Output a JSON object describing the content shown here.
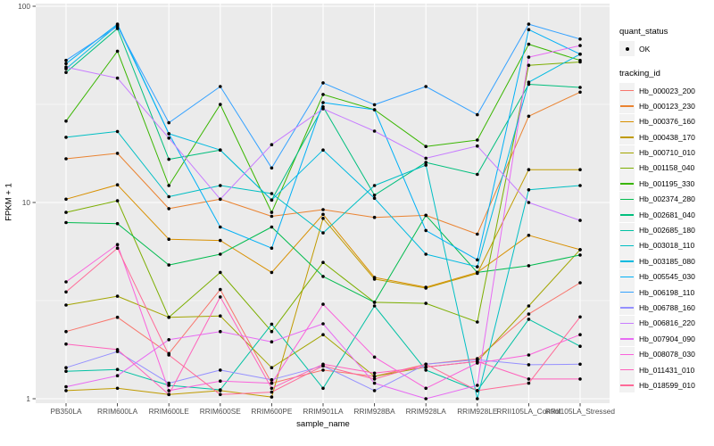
{
  "figure": {
    "x_axis_title": "sample_name",
    "y_axis_title": "FPKM + 1",
    "legend": {
      "quant_title": "quant_status",
      "quant_item": "OK",
      "tracking_title": "tracking_id"
    }
  },
  "colors": {
    "panel_bg": "#EBEBEB",
    "grid": "#FFFFFF",
    "axis_text": "#4D4D4D",
    "tick": "#333333",
    "point": "#000000",
    "legend_key_bg": "#F2F2F2"
  },
  "chart_data": {
    "type": "line",
    "title": "",
    "xlabel": "sample_name",
    "ylabel": "FPKM + 1",
    "y_scale": "log10",
    "ylim": [
      1,
      100
    ],
    "y_ticks": [
      1,
      10,
      100
    ],
    "y_minor_ticks": [
      3.162,
      31.62
    ],
    "grid": true,
    "legend_position": "right",
    "point_legend": {
      "title": "quant_status",
      "items": [
        "OK"
      ]
    },
    "series_legend_title": "tracking_id",
    "categories": [
      "PB350LA",
      "RRIM600LA",
      "RRIM600LE",
      "RRIM600SE",
      "RRIM600PE",
      "RRIM901LA",
      "RRIM928BA",
      "RRIM928LA",
      "RRIM928LE",
      "RRII105LA_Control",
      "RRII105LA_Stressed"
    ],
    "series": [
      {
        "name": "Hb_000023_200",
        "color": "#F8766D",
        "values": [
          2.2,
          2.6,
          1.7,
          3.6,
          1.2,
          1.4,
          1.3,
          1.5,
          1.6,
          2.7,
          3.9
        ]
      },
      {
        "name": "Hb_000123_230",
        "color": "#EA8331",
        "values": [
          16.7,
          17.8,
          9.3,
          10.4,
          8.5,
          9.2,
          8.4,
          8.6,
          6.9,
          27.5,
          36.5
        ]
      },
      {
        "name": "Hb_000376_160",
        "color": "#D89000",
        "values": [
          10.4,
          12.3,
          6.5,
          6.4,
          4.4,
          8.7,
          4.15,
          3.7,
          4.4,
          6.8,
          5.75
        ]
      },
      {
        "name": "Hb_000438_170",
        "color": "#C09B00",
        "values": [
          1.1,
          1.13,
          1.05,
          1.1,
          1.02,
          8.3,
          4.07,
          3.66,
          4.35,
          14.7,
          14.7
        ]
      },
      {
        "name": "Hb_000710_010",
        "color": "#A3A500",
        "values": [
          3.0,
          3.33,
          2.6,
          2.64,
          1.44,
          2.12,
          1.3,
          1.45,
          1.55,
          2.97,
          5.75
        ]
      },
      {
        "name": "Hb_001158_040",
        "color": "#7CAE00",
        "values": [
          8.9,
          10.2,
          2.6,
          4.4,
          2.2,
          4.95,
          3.1,
          3.06,
          2.46,
          50,
          52
        ]
      },
      {
        "name": "Hb_001195_330",
        "color": "#39B600",
        "values": [
          26,
          59,
          12.2,
          31.6,
          8.9,
          35.5,
          29.7,
          19.3,
          20.8,
          64,
          53
        ]
      },
      {
        "name": "Hb_002374_280",
        "color": "#00BB4E",
        "values": [
          7.9,
          7.8,
          4.8,
          5.45,
          7.5,
          4.2,
          3.1,
          8.6,
          4.4,
          4.76,
          5.4
        ]
      },
      {
        "name": "Hb_002681_040",
        "color": "#00BF7D",
        "values": [
          46,
          77,
          16.6,
          18.5,
          10.3,
          30.7,
          10.9,
          16.0,
          13.9,
          40,
          38.6
        ]
      },
      {
        "name": "Hb_002685_180",
        "color": "#00C1A3",
        "values": [
          1.38,
          1.41,
          1.17,
          1.11,
          2.4,
          1.13,
          2.97,
          1.4,
          1.1,
          2.54,
          1.85
        ]
      },
      {
        "name": "Hb_003018_110",
        "color": "#00BFC4",
        "values": [
          21.5,
          23,
          10.7,
          12.2,
          11.1,
          7.0,
          12.2,
          15.5,
          1.0,
          11.6,
          12.2
        ]
      },
      {
        "name": "Hb_003185_080",
        "color": "#00BAE0",
        "values": [
          48,
          80,
          22.4,
          18.5,
          10.3,
          18.5,
          10.5,
          5.45,
          4.7,
          41,
          57
        ]
      },
      {
        "name": "Hb_005545_030",
        "color": "#00B0F6",
        "values": [
          51,
          81,
          22.4,
          7.5,
          5.85,
          32.3,
          29.7,
          7.2,
          5.1,
          76,
          57
        ]
      },
      {
        "name": "Hb_006198_110",
        "color": "#35A2FF",
        "values": [
          53,
          79,
          25.5,
          39,
          15,
          40.7,
          31.5,
          39,
          28,
          81,
          68
        ]
      },
      {
        "name": "Hb_006788_160",
        "color": "#9590FF",
        "values": [
          1.44,
          1.74,
          1.2,
          1.4,
          1.25,
          1.47,
          1.1,
          1.5,
          1.58,
          1.49,
          1.5
        ]
      },
      {
        "name": "Hb_006816_220",
        "color": "#C77CFF",
        "values": [
          49,
          43,
          21.3,
          10.4,
          19.7,
          30,
          23.1,
          16.8,
          19.4,
          10,
          8.1
        ]
      },
      {
        "name": "Hb_007904_090",
        "color": "#E76BF3",
        "values": [
          1.15,
          1.31,
          2.0,
          2.2,
          1.95,
          2.41,
          1.2,
          1.0,
          1.17,
          55,
          63
        ]
      },
      {
        "name": "Hb_008078_030",
        "color": "#FA62DB",
        "values": [
          3.94,
          6.1,
          1.1,
          1.23,
          1.2,
          3.03,
          1.63,
          1.13,
          1.52,
          1.67,
          2.12
        ]
      },
      {
        "name": "Hb_011431_010",
        "color": "#FF62BC",
        "values": [
          1.9,
          1.78,
          1.05,
          3.3,
          1.13,
          1.5,
          1.35,
          1.45,
          1.55,
          1.26,
          1.26
        ]
      },
      {
        "name": "Hb_018599_010",
        "color": "#FF6A98",
        "values": [
          3.5,
          5.85,
          1.67,
          1.05,
          1.08,
          1.47,
          1.26,
          1.5,
          1.1,
          1.2,
          2.61
        ]
      }
    ]
  }
}
